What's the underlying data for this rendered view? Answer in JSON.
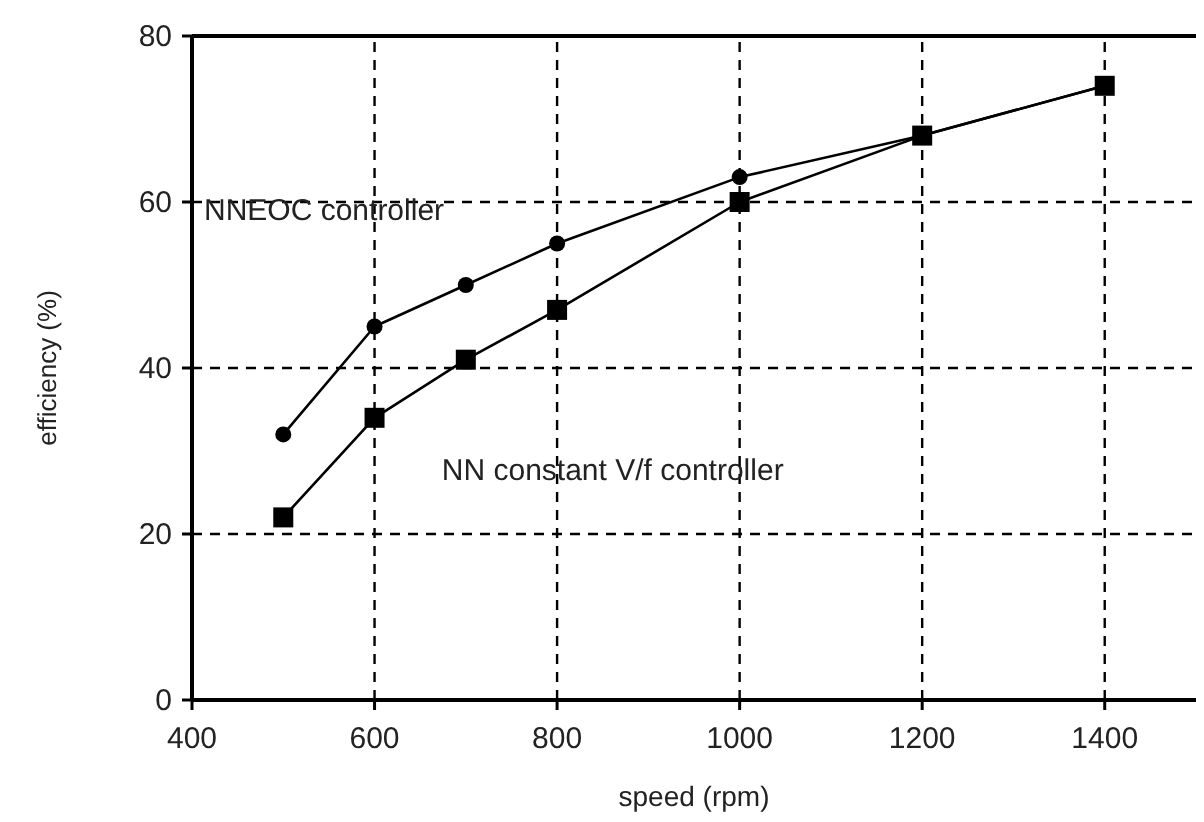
{
  "chart_data": {
    "type": "line",
    "xlabel": "speed (rpm)",
    "ylabel": "efficiency (%)",
    "x": [
      500,
      600,
      700,
      800,
      1000,
      1200,
      1400
    ],
    "series": [
      {
        "name": "NNEOC controller",
        "color": "#000000",
        "marker": "circle",
        "values": [
          32,
          45,
          50,
          55,
          63,
          68,
          74
        ]
      },
      {
        "name": "NN constant V/f controller",
        "color": "#000000",
        "marker": "square",
        "values": [
          22,
          34,
          41,
          47,
          60,
          68,
          74
        ]
      }
    ],
    "xlim": [
      400,
      1500
    ],
    "xticks": [
      400,
      600,
      800,
      1000,
      1200,
      1400
    ],
    "ylim": [
      0,
      80
    ],
    "yticks": [
      0,
      20,
      40,
      60,
      80
    ],
    "grid": true,
    "line_style": "solid"
  }
}
